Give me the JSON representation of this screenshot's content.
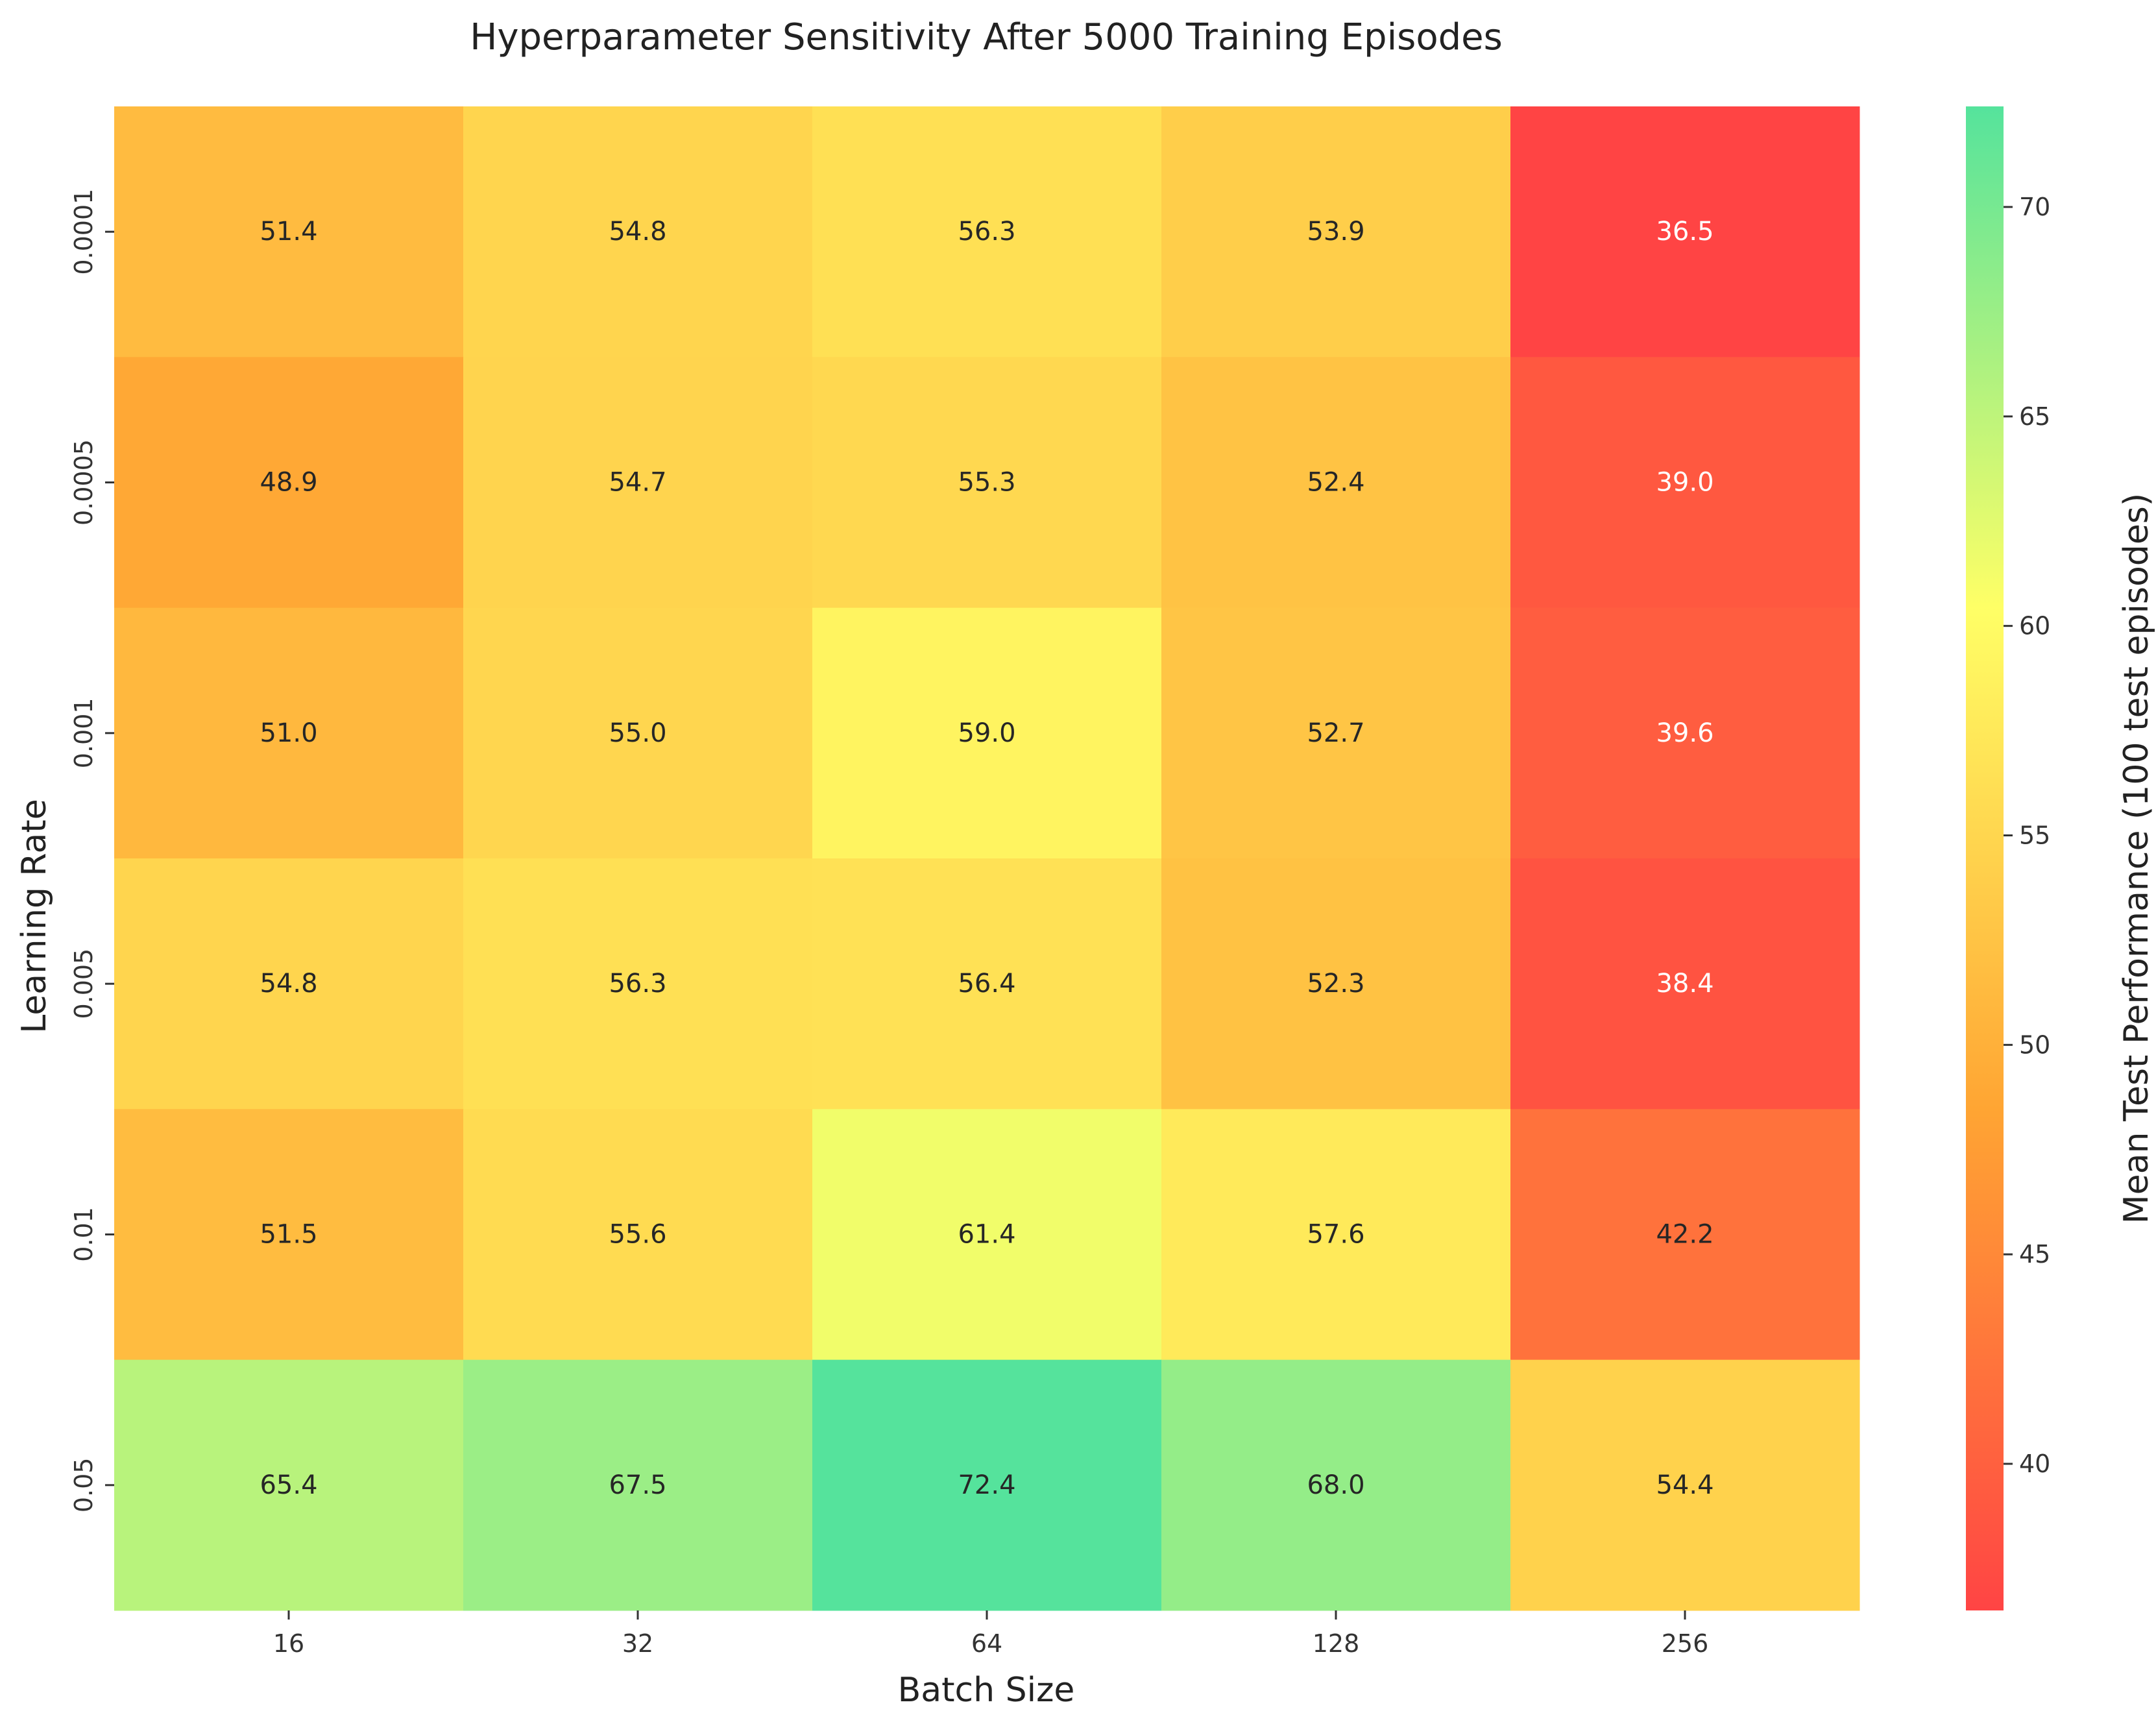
{
  "chart_data": {
    "type": "heatmap",
    "title": "Hyperparameter Sensitivity After 5000 Training Episodes",
    "xlabel": "Batch Size",
    "ylabel": "Learning Rate",
    "x_categories": [
      "16",
      "32",
      "64",
      "128",
      "256"
    ],
    "y_categories": [
      "0.0001",
      "0.0005",
      "0.001",
      "0.005",
      "0.01",
      "0.05"
    ],
    "values": [
      [
        51.4,
        54.8,
        56.3,
        53.9,
        36.5
      ],
      [
        48.9,
        54.7,
        55.3,
        52.4,
        39.0
      ],
      [
        51.0,
        55.0,
        59.0,
        52.7,
        39.6
      ],
      [
        54.8,
        56.3,
        56.4,
        52.3,
        38.4
      ],
      [
        51.5,
        55.6,
        61.4,
        57.6,
        42.2
      ],
      [
        65.4,
        67.5,
        72.4,
        68.0,
        54.4
      ]
    ],
    "value_format": "one decimal",
    "colorbar": {
      "label": "Mean Test Performance (100 test episodes)",
      "ticks": [
        40,
        45,
        50,
        55,
        60,
        65,
        70
      ],
      "range": [
        36.5,
        72.4
      ]
    },
    "colormap": [
      "#ff4444",
      "#ffa533",
      "#ffff66",
      "#55e39c"
    ]
  }
}
